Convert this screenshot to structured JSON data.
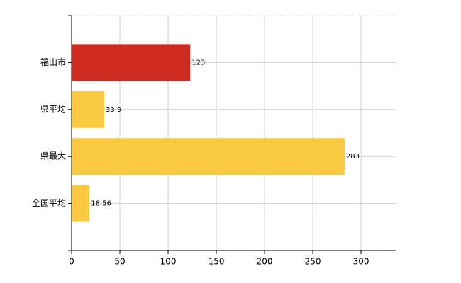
{
  "chart_data": {
    "type": "bar",
    "orientation": "horizontal",
    "categories": [
      "福山市",
      "県平均",
      "県最大",
      "全国平均"
    ],
    "values": [
      123,
      33.9,
      283,
      18.56
    ],
    "colors": [
      "#cc2a1e",
      "#f9c93f",
      "#f9c93f",
      "#f9c93f"
    ],
    "xlim": [
      0,
      336
    ],
    "xticks": [
      0,
      50,
      100,
      150,
      200,
      250,
      300
    ],
    "grid": true
  }
}
